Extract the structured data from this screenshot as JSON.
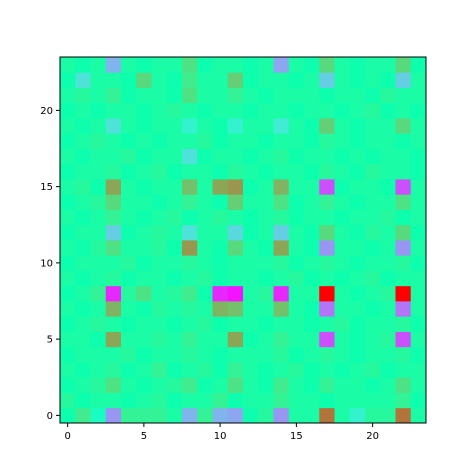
{
  "chart_data": {
    "type": "heatmap",
    "colormap": "rainbow",
    "rows": 24,
    "cols": 24,
    "origin": "lower",
    "vmin": -1,
    "vmax": 1,
    "grid": false,
    "xlim": [
      -0.5,
      23.5
    ],
    "ylim": [
      -0.5,
      23.5
    ],
    "xticks": [
      0,
      5,
      10,
      15,
      20
    ],
    "yticks": [
      0,
      5,
      10,
      15,
      20
    ],
    "x_tick_labels": [
      "0",
      "5",
      "10",
      "15",
      "20"
    ],
    "y_tick_labels": [
      "0",
      "5",
      "10",
      "15",
      "20"
    ],
    "values": [
      [
        0.05,
        0.25,
        -0.1,
        -0.6,
        0.2,
        0.2,
        0.2,
        0.1,
        -0.5,
        0.2,
        -0.5,
        -0.55,
        0.05,
        0.15,
        -0.6,
        0.1,
        0.1,
        0.7,
        0.1,
        -0.2,
        0.15,
        0.15,
        0.7,
        0.1
      ],
      [
        0.15,
        0.05,
        0.1,
        0.1,
        0.05,
        0.1,
        0.15,
        0.05,
        0.1,
        0.1,
        0.2,
        0.05,
        0.1,
        0.1,
        0.2,
        0.1,
        0.1,
        0.05,
        0.1,
        0.1,
        0.1,
        0.1,
        0.2,
        0.05
      ],
      [
        0.05,
        0.1,
        0.15,
        0.3,
        0.1,
        0.05,
        0.1,
        0.15,
        0.25,
        0.05,
        0.1,
        0.3,
        0.1,
        0.05,
        0.25,
        0.1,
        0.05,
        0.2,
        0.1,
        0.1,
        0.05,
        0.1,
        0.3,
        0.1
      ],
      [
        0.1,
        0.05,
        0.1,
        0.15,
        0.05,
        0.1,
        0.2,
        0.05,
        0.1,
        0.15,
        0.05,
        0.2,
        0.1,
        0.05,
        0.1,
        0.15,
        0.05,
        0.1,
        0.05,
        0.1,
        0.15,
        0.05,
        0.1,
        0.1
      ],
      [
        0.05,
        0.1,
        0.1,
        0.1,
        0.15,
        0.05,
        0.1,
        0.1,
        0.15,
        0.1,
        0.05,
        0.1,
        0.1,
        0.1,
        0.15,
        0.05,
        0.1,
        0.15,
        0.1,
        0.05,
        0.1,
        0.1,
        0.15,
        0.05
      ],
      [
        0.1,
        0.1,
        0.05,
        0.55,
        0.1,
        0.1,
        0.15,
        0.1,
        0.2,
        0.1,
        0.1,
        0.55,
        0.05,
        0.1,
        0.2,
        0.1,
        0.1,
        -0.8,
        0.1,
        0.05,
        0.1,
        0.15,
        -0.8,
        0.1
      ],
      [
        0.05,
        0.1,
        0.15,
        0.1,
        0.05,
        0.1,
        0.1,
        0.05,
        0.1,
        0.15,
        0.05,
        0.1,
        0.1,
        0.05,
        0.1,
        0.1,
        0.05,
        0.1,
        0.15,
        0.05,
        0.1,
        0.1,
        0.15,
        0.05
      ],
      [
        0.1,
        0.05,
        0.1,
        0.5,
        0.1,
        0.05,
        0.15,
        0.1,
        0.15,
        0.1,
        0.5,
        0.45,
        0.1,
        0.1,
        0.45,
        0.1,
        0.05,
        -0.7,
        0.1,
        0.1,
        0.05,
        0.1,
        -0.7,
        0.1
      ],
      [
        0.05,
        0.1,
        0.2,
        -0.9,
        0.15,
        0.3,
        0.1,
        0.15,
        0.25,
        0.05,
        -0.9,
        -0.95,
        0.1,
        0.15,
        -0.9,
        0.1,
        0.1,
        1.0,
        0.1,
        0.05,
        0.1,
        0.15,
        1.0,
        0.1
      ],
      [
        0.1,
        0.05,
        0.1,
        0.15,
        0.05,
        0.1,
        0.1,
        0.05,
        0.1,
        0.15,
        0.05,
        0.1,
        0.1,
        0.05,
        0.1,
        0.15,
        0.05,
        0.1,
        0.05,
        0.1,
        0.15,
        0.05,
        0.1,
        0.1
      ],
      [
        0.05,
        0.1,
        0.1,
        0.1,
        0.15,
        0.05,
        0.1,
        0.1,
        0.15,
        0.1,
        0.05,
        0.1,
        0.1,
        0.1,
        0.15,
        0.05,
        0.1,
        0.15,
        0.1,
        0.05,
        0.1,
        0.1,
        0.15,
        0.05
      ],
      [
        0.1,
        0.05,
        0.15,
        0.3,
        0.1,
        0.1,
        0.15,
        0.05,
        0.6,
        0.1,
        0.05,
        0.35,
        0.1,
        0.05,
        0.55,
        0.1,
        0.05,
        -0.6,
        0.1,
        0.1,
        0.05,
        0.1,
        -0.6,
        0.1
      ],
      [
        0.05,
        0.1,
        0.1,
        -0.4,
        0.05,
        0.1,
        0.15,
        0.1,
        -0.3,
        0.1,
        0.1,
        -0.35,
        0.05,
        0.1,
        -0.4,
        0.1,
        0.05,
        0.35,
        0.1,
        0.05,
        0.15,
        0.1,
        0.35,
        0.05
      ],
      [
        0.1,
        0.05,
        0.1,
        0.2,
        0.1,
        0.05,
        0.1,
        0.15,
        0.05,
        0.1,
        0.15,
        0.1,
        0.05,
        0.1,
        0.15,
        0.05,
        0.1,
        0.1,
        0.05,
        0.1,
        0.1,
        0.15,
        0.05,
        0.1
      ],
      [
        0.05,
        0.1,
        0.15,
        0.35,
        0.1,
        0.1,
        0.05,
        0.1,
        0.2,
        0.1,
        0.05,
        0.4,
        0.1,
        0.1,
        0.3,
        0.05,
        0.1,
        0.2,
        0.1,
        0.05,
        0.1,
        0.1,
        0.3,
        0.1
      ],
      [
        0.1,
        0.15,
        0.05,
        0.55,
        0.1,
        0.05,
        0.1,
        0.1,
        0.45,
        0.1,
        0.55,
        0.6,
        0.05,
        0.1,
        0.5,
        0.1,
        0.1,
        -0.8,
        0.05,
        0.1,
        0.1,
        0.05,
        -0.8,
        0.1
      ],
      [
        0.05,
        0.1,
        0.1,
        0.15,
        0.05,
        0.1,
        0.15,
        0.05,
        0.1,
        0.1,
        0.05,
        0.15,
        0.1,
        0.05,
        0.1,
        0.1,
        0.05,
        0.15,
        0.1,
        0.05,
        0.15,
        0.1,
        0.1,
        0.05
      ],
      [
        0.1,
        0.05,
        0.1,
        0.1,
        0.15,
        0.05,
        0.1,
        0.1,
        -0.3,
        0.05,
        0.1,
        0.1,
        0.05,
        0.1,
        0.15,
        0.05,
        0.1,
        0.1,
        0.05,
        0.1,
        0.05,
        0.1,
        0.1,
        0.05
      ],
      [
        0.05,
        0.1,
        0.15,
        0.1,
        0.05,
        0.1,
        0.05,
        0.1,
        0.1,
        0.15,
        0.05,
        0.1,
        0.1,
        0.05,
        0.1,
        0.1,
        0.05,
        0.15,
        0.1,
        0.05,
        0.1,
        0.1,
        0.05,
        0.1
      ],
      [
        0.1,
        0.05,
        0.1,
        -0.3,
        0.1,
        0.05,
        0.1,
        0.1,
        -0.2,
        0.1,
        0.05,
        -0.2,
        0.1,
        0.1,
        -0.25,
        0.1,
        0.05,
        0.4,
        0.1,
        0.05,
        0.1,
        0.1,
        0.35,
        0.1
      ],
      [
        0.05,
        0.1,
        0.05,
        0.1,
        0.1,
        0.05,
        0.1,
        0.15,
        0.1,
        0.05,
        0.1,
        0.1,
        0.05,
        0.1,
        0.1,
        0.05,
        0.1,
        0.1,
        0.05,
        0.1,
        0.15,
        0.05,
        0.1,
        0.05
      ],
      [
        0.1,
        0.15,
        0.1,
        0.2,
        0.05,
        0.1,
        0.1,
        0.05,
        0.3,
        0.1,
        0.1,
        0.2,
        0.1,
        0.05,
        0.1,
        0.1,
        0.1,
        0.05,
        0.1,
        0.1,
        0.05,
        0.15,
        0.1,
        0.1
      ],
      [
        0.05,
        -0.3,
        0.1,
        0.1,
        0.05,
        0.35,
        0.1,
        0.05,
        0.25,
        0.1,
        0.1,
        0.4,
        0.05,
        0.1,
        0.1,
        0.05,
        0.1,
        -0.4,
        0.1,
        0.05,
        0.1,
        0.05,
        -0.4,
        0.1
      ],
      [
        0.1,
        0.05,
        0.1,
        -0.5,
        0.1,
        0.05,
        0.1,
        0.1,
        0.3,
        0.05,
        0.1,
        0.1,
        0.05,
        0.1,
        -0.55,
        0.1,
        0.05,
        0.35,
        0.1,
        0.05,
        0.1,
        0.1,
        0.35,
        0.05
      ]
    ]
  }
}
